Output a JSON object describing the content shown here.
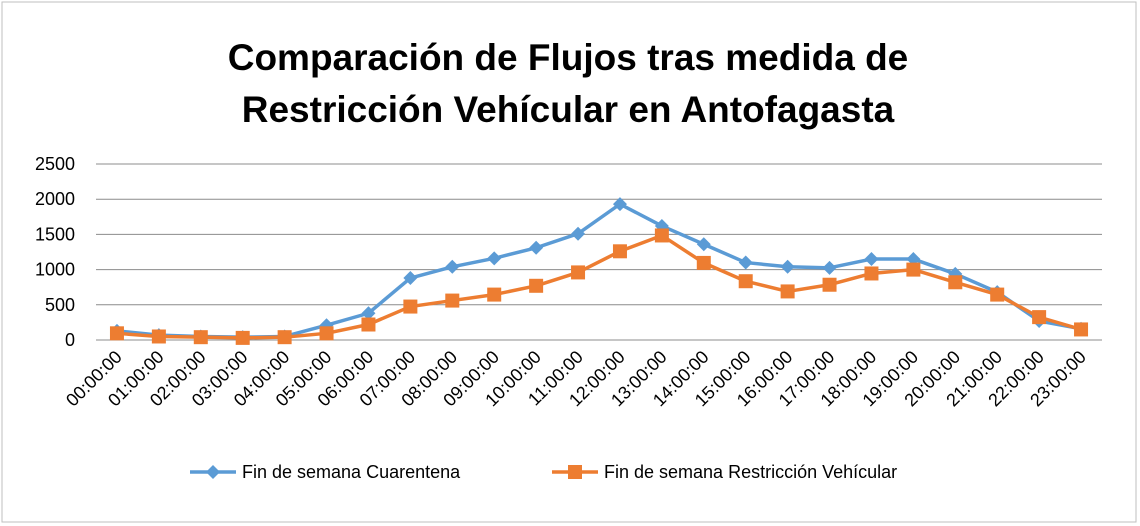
{
  "chart_data": {
    "type": "line",
    "title": [
      "Comparación de Flujos tras medida de",
      "Restricción Vehícular en Antofagasta"
    ],
    "xlabel": "",
    "ylabel": "",
    "ylim": [
      0,
      2500
    ],
    "yticks": [
      0,
      500,
      1000,
      1500,
      2000,
      2500
    ],
    "grid": true,
    "legend_position": "bottom",
    "categories": [
      "00:00:00",
      "01:00:00",
      "02:00:00",
      "03:00:00",
      "04:00:00",
      "05:00:00",
      "06:00:00",
      "07:00:00",
      "08:00:00",
      "09:00:00",
      "10:00:00",
      "11:00:00",
      "12:00:00",
      "13:00:00",
      "14:00:00",
      "15:00:00",
      "16:00:00",
      "17:00:00",
      "18:00:00",
      "19:00:00",
      "20:00:00",
      "21:00:00",
      "22:00:00",
      "23:00:00"
    ],
    "series": [
      {
        "name": "Fin de semana Cuarentena",
        "color": "#5B9BD5",
        "marker": "diamond",
        "values": [
          130,
          70,
          50,
          40,
          50,
          210,
          380,
          880,
          1040,
          1160,
          1310,
          1510,
          1930,
          1620,
          1360,
          1100,
          1040,
          1025,
          1150,
          1150,
          940,
          680,
          270,
          160
        ]
      },
      {
        "name": "Fin de semana Restricción Vehícular",
        "color": "#ED7D31",
        "marker": "square",
        "values": [
          95,
          50,
          40,
          30,
          40,
          95,
          220,
          475,
          560,
          645,
          770,
          960,
          1260,
          1485,
          1095,
          835,
          690,
          785,
          945,
          1000,
          820,
          645,
          325,
          150
        ]
      }
    ]
  }
}
